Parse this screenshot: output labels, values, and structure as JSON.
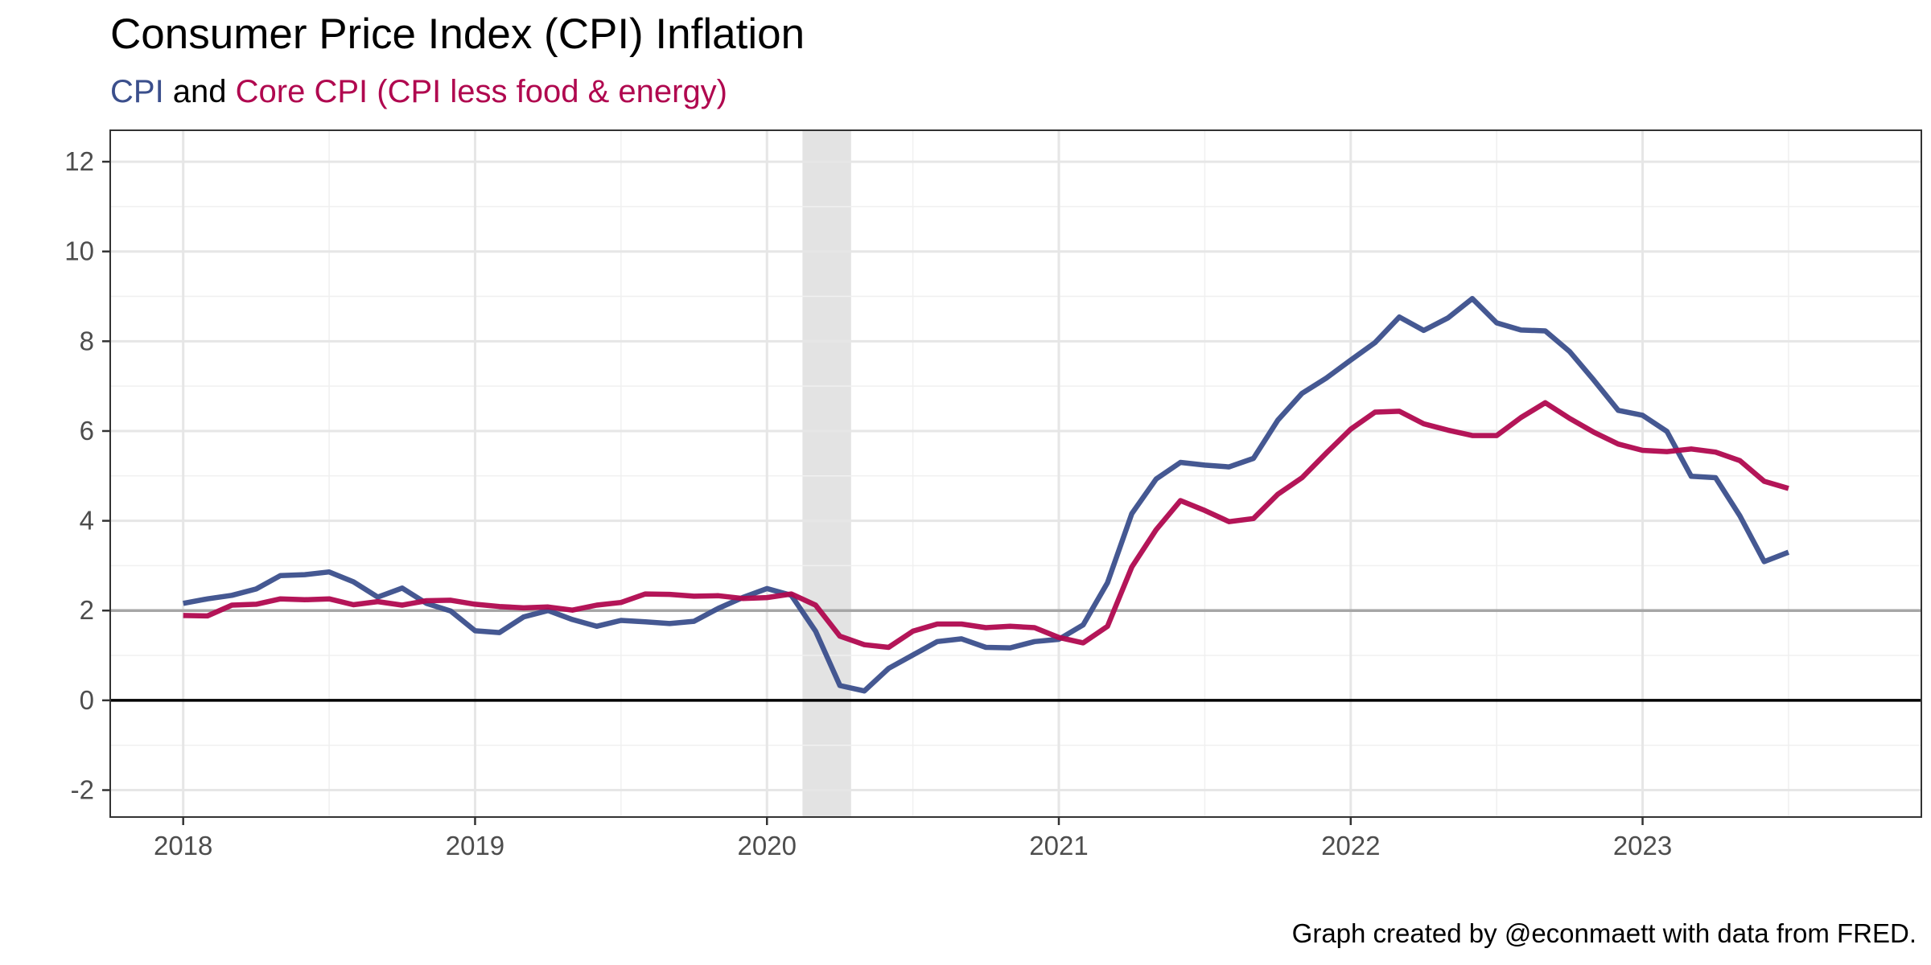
{
  "chart_data": {
    "type": "line",
    "title": "Consumer Price Index (CPI) Inflation",
    "subtitle_parts": [
      {
        "text": "CPI",
        "color": "#3b4f8c"
      },
      {
        "text": " and ",
        "color": "#000000"
      },
      {
        "text": "Core CPI (CPI less food & energy)",
        "color": "#b0084f"
      }
    ],
    "caption": "Graph created by @econmaett with data from FRED.",
    "xlabel": "",
    "ylabel": "",
    "x_range": [
      "2017-10-01",
      "2023-12-15"
    ],
    "ylim": [
      -2.6,
      12.7
    ],
    "y_ticks": [
      -2,
      0,
      2,
      4,
      6,
      8,
      10,
      12
    ],
    "x_ticks": [
      "2018",
      "2019",
      "2020",
      "2021",
      "2022",
      "2023"
    ],
    "grid": true,
    "reference_lines": [
      {
        "y": 2,
        "color": "#a6a6a6"
      },
      {
        "y": 0,
        "color": "#000000"
      }
    ],
    "recession_shading": {
      "start": "2020-02-15",
      "end": "2020-04-15",
      "color": "#e3e3e3"
    },
    "start_month": "2018-01",
    "series": [
      {
        "name": "CPI",
        "color": "#3b4f8c",
        "values": [
          2.16,
          2.26,
          2.34,
          2.48,
          2.78,
          2.8,
          2.86,
          2.64,
          2.3,
          2.5,
          2.16,
          1.99,
          1.55,
          1.51,
          1.86,
          2.0,
          1.8,
          1.65,
          1.78,
          1.75,
          1.71,
          1.76,
          2.05,
          2.29,
          2.49,
          2.34,
          1.54,
          0.33,
          0.21,
          0.71,
          1.01,
          1.31,
          1.37,
          1.18,
          1.17,
          1.31,
          1.36,
          1.68,
          2.62,
          4.16,
          4.93,
          5.3,
          5.24,
          5.2,
          5.39,
          6.24,
          6.84,
          7.18,
          7.58,
          7.97,
          8.54,
          8.24,
          8.52,
          8.95,
          8.41,
          8.25,
          8.23,
          7.77,
          7.13,
          6.46,
          6.35,
          5.99,
          4.99,
          4.96,
          4.11,
          3.09,
          3.3
        ]
      },
      {
        "name": "Core CPI (CPI less food & energy)",
        "color": "#b0084f",
        "values": [
          1.89,
          1.88,
          2.12,
          2.14,
          2.26,
          2.24,
          2.26,
          2.13,
          2.2,
          2.12,
          2.22,
          2.23,
          2.14,
          2.09,
          2.06,
          2.08,
          2.01,
          2.12,
          2.18,
          2.37,
          2.36,
          2.32,
          2.33,
          2.27,
          2.29,
          2.37,
          2.12,
          1.43,
          1.24,
          1.18,
          1.54,
          1.7,
          1.7,
          1.62,
          1.65,
          1.62,
          1.4,
          1.28,
          1.65,
          2.97,
          3.8,
          4.45,
          4.23,
          3.98,
          4.05,
          4.59,
          4.96,
          5.51,
          6.04,
          6.42,
          6.44,
          6.16,
          6.02,
          5.9,
          5.9,
          6.3,
          6.63,
          6.28,
          5.97,
          5.71,
          5.57,
          5.54,
          5.6,
          5.53,
          5.34,
          4.88,
          4.72
        ]
      }
    ]
  }
}
